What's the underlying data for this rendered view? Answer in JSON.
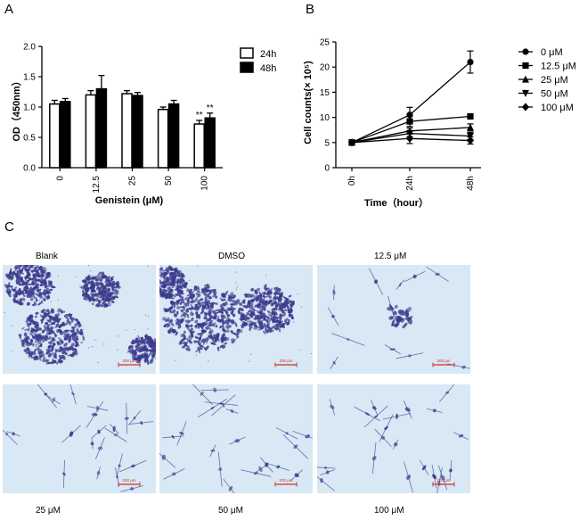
{
  "panels": {
    "a": "A",
    "b": "B",
    "c": "C"
  },
  "chart_data": [
    {
      "type": "bar",
      "panel": "A",
      "categories": [
        "0",
        "12.5",
        "25",
        "50",
        "100"
      ],
      "series": [
        {
          "name": "24h",
          "values": [
            1.05,
            1.2,
            1.22,
            0.96,
            0.72
          ],
          "errors": [
            0.06,
            0.07,
            0.05,
            0.04,
            0.06
          ],
          "fill": "#ffffff"
        },
        {
          "name": "48h",
          "values": [
            1.09,
            1.3,
            1.19,
            1.05,
            0.82
          ],
          "errors": [
            0.05,
            0.22,
            0.05,
            0.06,
            0.08
          ],
          "fill": "#000000"
        }
      ],
      "annotations": [
        {
          "category": "100",
          "series": "24h",
          "text": "**"
        },
        {
          "category": "100",
          "series": "48h",
          "text": "**"
        }
      ],
      "xlabel": "Genistein (μM)",
      "ylabel": "OD（450nm）",
      "ylim": [
        0,
        2.0
      ],
      "yticks": [
        "0.0",
        "0.5",
        "1.0",
        "1.5",
        "2.0"
      ],
      "legend_position": "right"
    },
    {
      "type": "line",
      "panel": "B",
      "x": [
        "0h",
        "24h",
        "48h"
      ],
      "series": [
        {
          "name": "0 μM",
          "marker": "circle",
          "values": [
            5,
            10.5,
            21
          ],
          "errors": [
            0.2,
            1.5,
            2.2
          ]
        },
        {
          "name": "12.5 μM",
          "marker": "square",
          "values": [
            5,
            9.2,
            10.2
          ],
          "errors": [
            0.2,
            1.0,
            0.3
          ]
        },
        {
          "name": "25 μM",
          "marker": "triangle-up",
          "values": [
            5,
            7.3,
            8
          ],
          "errors": [
            0.2,
            0.6,
            0.7
          ]
        },
        {
          "name": "50 μM",
          "marker": "triangle-down",
          "values": [
            5,
            6.8,
            6.3
          ],
          "errors": [
            0.2,
            0.6,
            0.7
          ]
        },
        {
          "name": "100 μM",
          "marker": "diamond",
          "values": [
            5,
            5.8,
            5.4
          ],
          "errors": [
            0.2,
            1.0,
            0.7
          ]
        }
      ],
      "xlabel": "Time（hour）",
      "ylabel": "Cell counts(× 10⁵)",
      "ylim": [
        0,
        25
      ],
      "yticks": [
        "0",
        "5",
        "10",
        "15",
        "20",
        "25"
      ],
      "legend_position": "right"
    }
  ],
  "micrographs": [
    {
      "label": "Blank",
      "density": "dense",
      "scale_bar": "200 μm"
    },
    {
      "label": "DMSO",
      "density": "dense",
      "scale_bar": "200 μm"
    },
    {
      "label": "12.5 μM",
      "density": "sparse-cluster",
      "scale_bar": "200 μm"
    },
    {
      "label": "25 μM",
      "density": "sparse",
      "scale_bar": "200 μm"
    },
    {
      "label": "50 μM",
      "density": "sparse",
      "scale_bar": "200 μm"
    },
    {
      "label": "100 μM",
      "density": "sparse",
      "scale_bar": "200 μm"
    }
  ],
  "colors": {
    "cell": "#3b3a8c",
    "background": "#d8e8f4",
    "scale": "#d0332b"
  }
}
